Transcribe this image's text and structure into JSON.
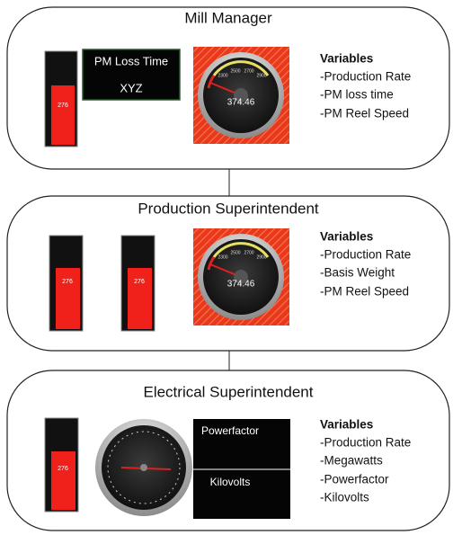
{
  "panels": [
    {
      "title": "Mill Manager",
      "bar_gauge": {
        "value_label": "276"
      },
      "loss_box": {
        "title": "PM Loss Time",
        "value": "XYZ"
      },
      "dial": {
        "value": "374.46",
        "ticks": [
          "2300",
          "2500",
          "2700",
          "2900"
        ]
      },
      "variables_heading": "Variables",
      "variables": [
        "-Production Rate",
        "-PM loss time",
        "-PM Reel Speed"
      ]
    },
    {
      "title": "Production Superintendent",
      "bar_gauges": [
        {
          "value_label": "276"
        },
        {
          "value_label": "276"
        }
      ],
      "dial": {
        "value": "374.46",
        "ticks": [
          "2300",
          "2500",
          "2700",
          "2900"
        ]
      },
      "variables_heading": "Variables",
      "variables": [
        "-Production Rate",
        "-Basis Weight",
        "-PM Reel Speed"
      ]
    },
    {
      "title": "Electrical Superintendent",
      "bar_gauge": {
        "value_label": "276"
      },
      "boxes": [
        "Powerfactor",
        "Kilovolts"
      ],
      "variables_heading": "Variables",
      "variables": [
        "-Production Rate",
        "-Megawatts",
        "-Powerfactor",
        "-Kilovolts"
      ]
    }
  ]
}
